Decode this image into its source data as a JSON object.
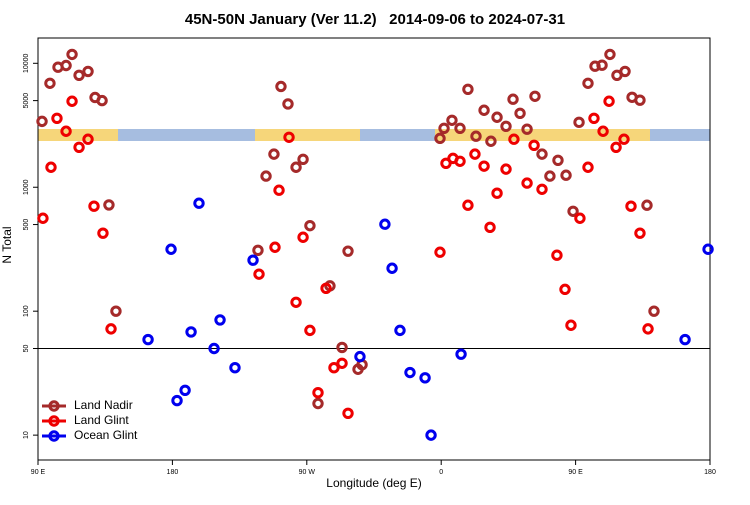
{
  "chart_data": {
    "type": "scatter",
    "title": "45N-50N January (Ver 11.2)   2014-09-06 to 2024-07-31",
    "x_label": "Longitude (deg E)",
    "y_label": "N Total",
    "log_y": true,
    "legend": "bottom-left",
    "xlim": [
      90,
      540
    ],
    "ylim": [
      6.3,
      16000
    ],
    "xticks": [
      {
        "value": 90,
        "label": "90 E"
      },
      180,
      {
        "value": 270,
        "label": "90 W"
      },
      {
        "value": 360,
        "label": "0"
      },
      {
        "value": 450,
        "label": "90 E"
      },
      {
        "value": 540,
        "label": "180"
      }
    ],
    "yticks": [
      10,
      50,
      100,
      500,
      1000,
      5000,
      10000
    ],
    "reference_line": 50,
    "series": [
      {
        "name": "Land Nadir",
        "color": "#a52a2a",
        "x": [
          92.7,
          98,
          103.4,
          108.8,
          112.8,
          117.5,
          123.5,
          128.2,
          132.9,
          137.5,
          142.2,
          237.3,
          242.7,
          248,
          252.7,
          257.4,
          262.8,
          267.5,
          272.1,
          277.5,
          285.5,
          293.6,
          297.6,
          304.3,
          307,
          359.2,
          361.9,
          367.2,
          372.6,
          377.9,
          383.3,
          388.7,
          393.3,
          397.4,
          403.4,
          408.1,
          412.8,
          417.5,
          422.8,
          427.5,
          432.8,
          438.2,
          443.6,
          448.3,
          452.3,
          458.3,
          463,
          467.7,
          473,
          477.7,
          483.1,
          487.8,
          493.1,
          497.8,
          502.5
        ],
        "values": [
          3400,
          6900,
          9300,
          9600,
          11800,
          8000,
          8600,
          5300,
          5000,
          720,
          100,
          310,
          1230,
          1850,
          6500,
          4700,
          1450,
          1680,
          490,
          18,
          160,
          51,
          305,
          34,
          37,
          2480,
          2990,
          3470,
          2990,
          6170,
          2580,
          4180,
          2350,
          3670,
          3100,
          5130,
          3950,
          2940,
          5420,
          1850,
          1230,
          1650,
          1250,
          640,
          3340,
          6900,
          9470,
          9650,
          11800,
          8000,
          8600,
          5320,
          5040,
          716,
          100
        ]
      },
      {
        "name": "Land Glint",
        "color": "#ee0000",
        "x": [
          93.3,
          98.7,
          102.7,
          108.8,
          112.8,
          117.5,
          123.5,
          127.5,
          133.5,
          138.9,
          238,
          248.7,
          251.4,
          258.1,
          262.8,
          267.5,
          272.1,
          277.5,
          282.9,
          288.2,
          293.6,
          297.6,
          359.2,
          363.2,
          367.9,
          372.6,
          377.9,
          382.6,
          388.7,
          397.4,
          392.7,
          403.4,
          408.7,
          417.5,
          422.2,
          427.5,
          437.5,
          442.9,
          446.9,
          452.9,
          458.3,
          462.3,
          468.4,
          472.4,
          477.1,
          482.4,
          487.1,
          493.1,
          498.5
        ],
        "values": [
          562,
          1450,
          3600,
          2830,
          4940,
          2100,
          2440,
          703,
          426,
          72,
          199,
          328,
          946,
          2530,
          118,
          395,
          70,
          22,
          153,
          35,
          38,
          15,
          299,
          1560,
          1710,
          1620,
          716,
          1850,
          1480,
          895,
          475,
          1400,
          2440,
          1080,
          2180,
          963,
          283,
          150,
          77,
          562,
          1450,
          3600,
          2830,
          4940,
          2100,
          2440,
          703,
          426,
          72
        ]
      },
      {
        "name": "Ocean Glint",
        "color": "#0000ee",
        "x": [
          163.7,
          179.1,
          183.1,
          188.5,
          192.5,
          197.8,
          207.9,
          211.9,
          221.9,
          234,
          305.6,
          322.3,
          327.1,
          332.4,
          339.1,
          349.2,
          353.2,
          373.3,
          523.3,
          538.7
        ],
        "values": [
          59,
          316,
          19,
          23,
          68,
          743,
          50,
          85,
          35,
          258,
          43,
          503,
          222,
          70,
          32,
          29,
          10,
          45,
          59,
          316
        ]
      }
    ]
  }
}
